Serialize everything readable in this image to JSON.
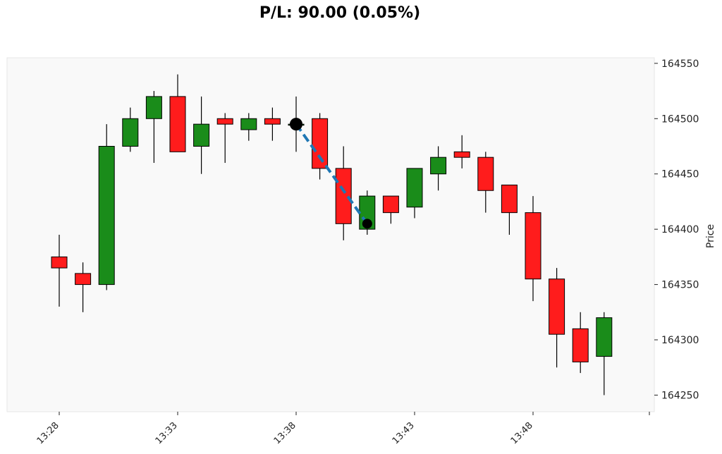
{
  "chart_data": {
    "type": "candlestick",
    "title": "P/L: 90.00 (0.05%)",
    "ylabel": "Price",
    "xlabel": "",
    "y_axis_side": "right",
    "ylim": [
      164235,
      164555
    ],
    "y_ticks": [
      164250,
      164300,
      164350,
      164400,
      164450,
      164500,
      164550
    ],
    "x_ticks": [
      "13:28",
      "13:33",
      "13:38",
      "13:43",
      "13:48"
    ],
    "grid": false,
    "background": "#f9f9f9",
    "up_color": "#1a8c1a",
    "down_color": "#ff1c1c",
    "candles": [
      {
        "time": "13:28",
        "open": 164375,
        "high": 164395,
        "low": 164330,
        "close": 164365
      },
      {
        "time": "13:29",
        "open": 164360,
        "high": 164370,
        "low": 164325,
        "close": 164350
      },
      {
        "time": "13:30",
        "open": 164350,
        "high": 164495,
        "low": 164345,
        "close": 164475
      },
      {
        "time": "13:31",
        "open": 164475,
        "high": 164510,
        "low": 164470,
        "close": 164500
      },
      {
        "time": "13:32",
        "open": 164500,
        "high": 164525,
        "low": 164460,
        "close": 164520
      },
      {
        "time": "13:33",
        "open": 164520,
        "high": 164540,
        "low": 164470,
        "close": 164470
      },
      {
        "time": "13:34",
        "open": 164475,
        "high": 164520,
        "low": 164450,
        "close": 164495
      },
      {
        "time": "13:35",
        "open": 164500,
        "high": 164505,
        "low": 164460,
        "close": 164495
      },
      {
        "time": "13:36",
        "open": 164490,
        "high": 164505,
        "low": 164480,
        "close": 164500
      },
      {
        "time": "13:37",
        "open": 164500,
        "high": 164510,
        "low": 164480,
        "close": 164495
      },
      {
        "time": "13:38",
        "open": 164495,
        "high": 164520,
        "low": 164470,
        "close": 164495
      },
      {
        "time": "13:39",
        "open": 164500,
        "high": 164505,
        "low": 164445,
        "close": 164455
      },
      {
        "time": "13:40",
        "open": 164455,
        "high": 164475,
        "low": 164390,
        "close": 164405
      },
      {
        "time": "13:41",
        "open": 164400,
        "high": 164435,
        "low": 164395,
        "close": 164430
      },
      {
        "time": "13:42",
        "open": 164430,
        "high": 164430,
        "low": 164405,
        "close": 164415
      },
      {
        "time": "13:43",
        "open": 164420,
        "high": 164455,
        "low": 164410,
        "close": 164455
      },
      {
        "time": "13:44",
        "open": 164450,
        "high": 164475,
        "low": 164435,
        "close": 164465
      },
      {
        "time": "13:45",
        "open": 164470,
        "high": 164485,
        "low": 164455,
        "close": 164465
      },
      {
        "time": "13:46",
        "open": 164465,
        "high": 164470,
        "low": 164415,
        "close": 164435
      },
      {
        "time": "13:47",
        "open": 164440,
        "high": 164440,
        "low": 164395,
        "close": 164415
      },
      {
        "time": "13:48",
        "open": 164415,
        "high": 164430,
        "low": 164335,
        "close": 164355
      },
      {
        "time": "13:49",
        "open": 164355,
        "high": 164365,
        "low": 164275,
        "close": 164305
      },
      {
        "time": "13:50",
        "open": 164310,
        "high": 164325,
        "low": 164270,
        "close": 164280
      },
      {
        "time": "13:51",
        "open": 164285,
        "high": 164325,
        "low": 164250,
        "close": 164320
      }
    ],
    "trade": {
      "entry": {
        "time": "13:38",
        "price": 164495
      },
      "exit": {
        "time": "13:41",
        "price": 164405
      },
      "line_color": "#1f77b4",
      "marker_color": "#000000"
    }
  }
}
